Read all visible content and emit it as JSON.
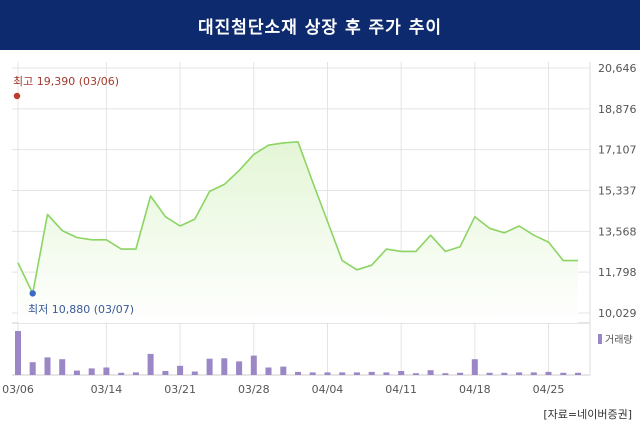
{
  "title": "대진첨단소재 상장 후 주가 추이",
  "source": "[자료=네이버증권]",
  "chart_data": {
    "type": "line",
    "y_ticks": [
      "20,646",
      "18,876",
      "17,107",
      "15,337",
      "13,568",
      "11,798",
      "10,029"
    ],
    "ylim": [
      10029,
      20646
    ],
    "x_tick_labels": [
      {
        "index": 0,
        "label": "03/06"
      },
      {
        "index": 6,
        "label": "03/14"
      },
      {
        "index": 11,
        "label": "03/21"
      },
      {
        "index": 16,
        "label": "03/28"
      },
      {
        "index": 21,
        "label": "04/04"
      },
      {
        "index": 26,
        "label": "04/11"
      },
      {
        "index": 31,
        "label": "04/18"
      },
      {
        "index": 36,
        "label": "04/25"
      }
    ],
    "prices": [
      12200,
      10880,
      14300,
      13600,
      13300,
      13200,
      13200,
      12800,
      12800,
      15100,
      14200,
      13800,
      14100,
      15300,
      15600,
      16200,
      16900,
      17300,
      17400,
      17450,
      15700,
      14000,
      12300,
      11900,
      12100,
      12800,
      12700,
      12700,
      13400,
      12700,
      12900,
      14200,
      13700,
      13500,
      13800,
      13400,
      13100,
      12300,
      12300
    ],
    "volume_levels": [
      1.0,
      0.29,
      0.4,
      0.36,
      0.1,
      0.15,
      0.17,
      0.05,
      0.06,
      0.48,
      0.09,
      0.21,
      0.08,
      0.37,
      0.38,
      0.31,
      0.44,
      0.17,
      0.19,
      0.07,
      0.06,
      0.06,
      0.06,
      0.06,
      0.07,
      0.06,
      0.09,
      0.04,
      0.11,
      0.04,
      0.05,
      0.36,
      0.05,
      0.05,
      0.06,
      0.06,
      0.07,
      0.05,
      0.05
    ],
    "high_label": "최고 19,390 (03/06)",
    "high_value": 19390,
    "low_label": "최저 10,880 (03/07)",
    "low_value": 10880,
    "low_index": 1,
    "volume_label": "거래량",
    "colors": {
      "line": "#8cd463",
      "fill": "#e4f6d6",
      "bar": "#9b86c6",
      "high": "#c0392b",
      "high_text": "#a33a2c",
      "low": "#3a6bc4",
      "low_text": "#3a5a99",
      "grid": "#e4e4e4"
    }
  }
}
